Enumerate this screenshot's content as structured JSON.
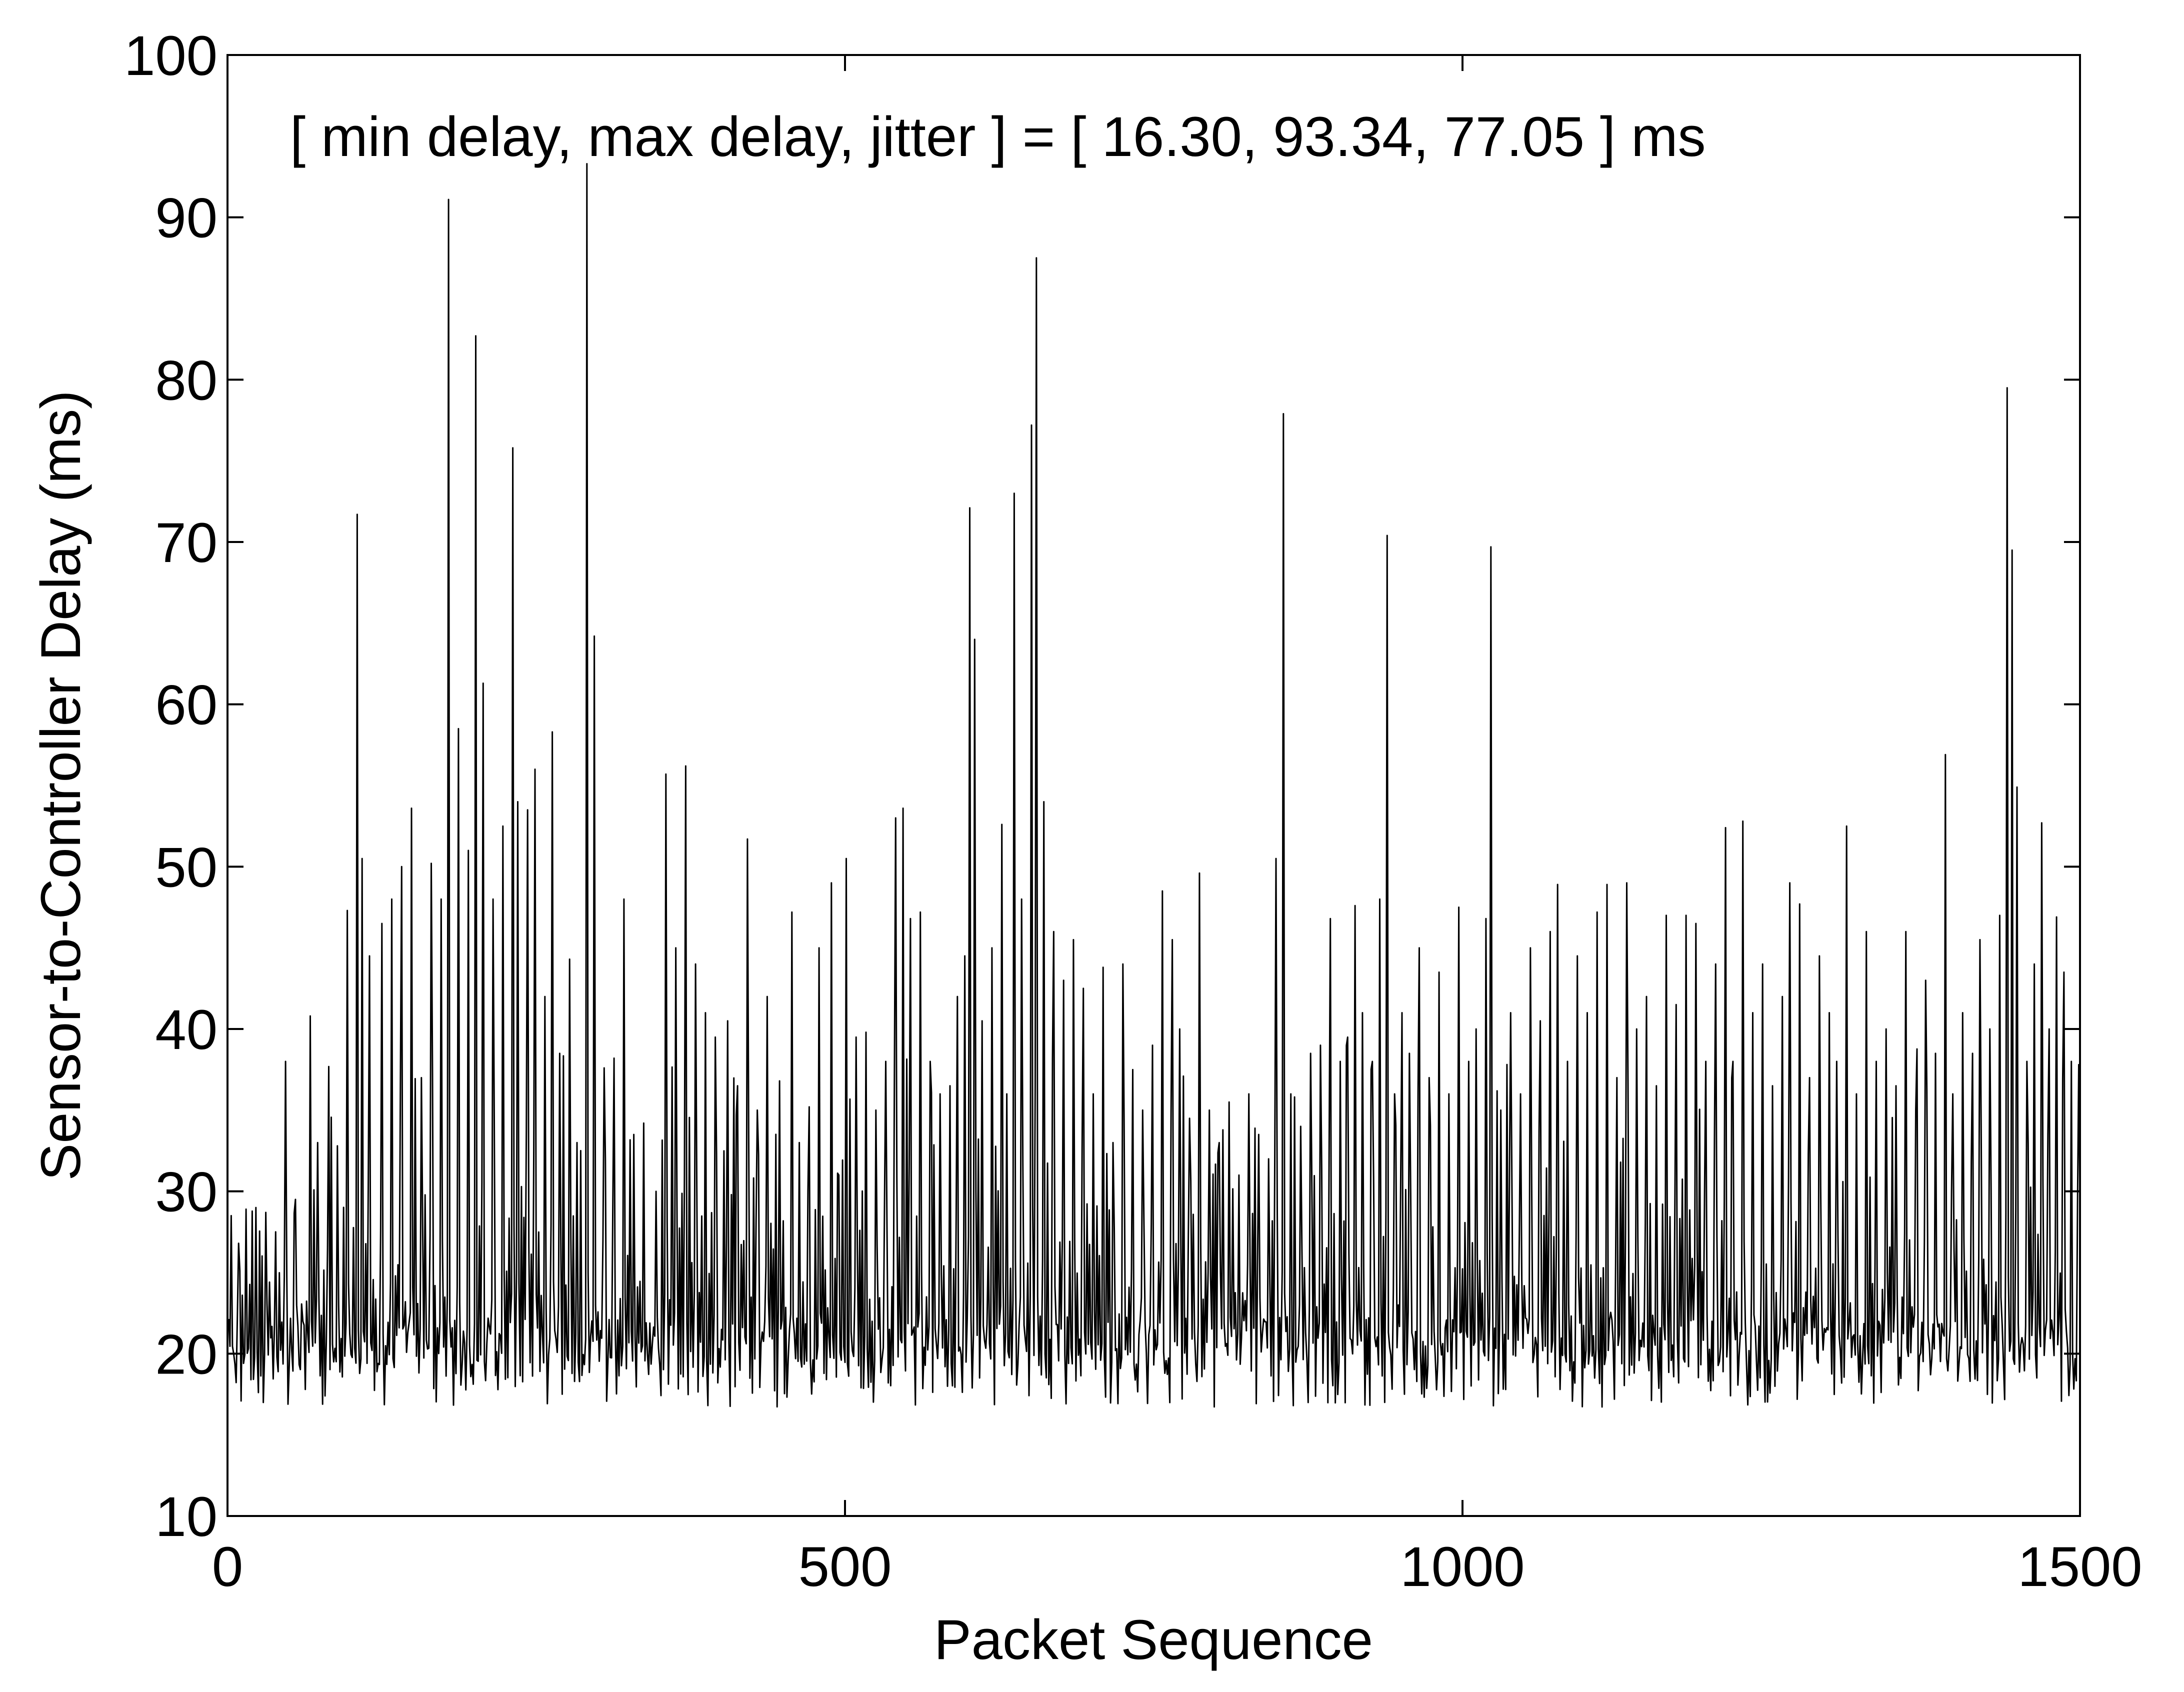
{
  "chart_data": {
    "type": "line",
    "title": "",
    "xlabel": "Packet Sequence",
    "ylabel": "Sensor-to-Controller Delay (ms)",
    "xlim": [
      0,
      1500
    ],
    "ylim": [
      10,
      100
    ],
    "xticks": [
      0,
      500,
      1000,
      1500
    ],
    "xtick_labels": [
      "0",
      "500",
      "1000",
      "1500"
    ],
    "yticks": [
      10,
      20,
      30,
      40,
      50,
      60,
      70,
      80,
      90,
      100
    ],
    "ytick_labels": [
      "10",
      "20",
      "30",
      "40",
      "50",
      "60",
      "70",
      "80",
      "90",
      "100"
    ],
    "grid": false,
    "legend": "none",
    "annotation": "[ min delay, max delay, jitter ] = [ 16.30, 93.34, 77.05 ] ms",
    "line_color": "#000000",
    "series": [
      {
        "count": 1500,
        "baseline_min": 16.3,
        "peaks": [
          [
            2,
            28.5
          ],
          [
            8,
            26.8
          ],
          [
            14,
            28.9
          ],
          [
            22,
            29.0
          ],
          [
            30,
            28.7
          ],
          [
            38,
            27.5
          ],
          [
            46,
            38.0
          ],
          [
            54,
            29.5
          ],
          [
            60,
            22.0
          ],
          [
            66,
            40.8
          ],
          [
            72,
            33.0
          ],
          [
            80,
            26.5
          ],
          [
            88,
            32.8
          ],
          [
            96,
            47.3
          ],
          [
            104,
            71.7
          ],
          [
            108,
            50.5
          ],
          [
            114,
            44.5
          ],
          [
            124,
            46.5
          ],
          [
            132,
            48.0
          ],
          [
            140,
            50.0
          ],
          [
            148,
            53.6
          ],
          [
            156,
            37.0
          ],
          [
            164,
            50.2
          ],
          [
            172,
            48.0
          ],
          [
            178,
            91.1
          ],
          [
            186,
            58.5
          ],
          [
            194,
            51.0
          ],
          [
            200,
            82.7
          ],
          [
            206,
            61.3
          ],
          [
            214,
            48.0
          ],
          [
            222,
            52.5
          ],
          [
            230,
            75.8
          ],
          [
            234,
            54.0
          ],
          [
            242,
            53.5
          ],
          [
            248,
            56.0
          ],
          [
            256,
            42.0
          ],
          [
            262,
            58.3
          ],
          [
            268,
            38.5
          ],
          [
            276,
            44.3
          ],
          [
            282,
            33.0
          ],
          [
            290,
            93.3
          ],
          [
            296,
            64.2
          ],
          [
            304,
            37.6
          ],
          [
            312,
            38.2
          ],
          [
            320,
            48.0
          ],
          [
            328,
            33.5
          ],
          [
            336,
            34.2
          ],
          [
            346,
            30.0
          ],
          [
            354,
            55.7
          ],
          [
            362,
            45.0
          ],
          [
            370,
            56.2
          ],
          [
            378,
            44.0
          ],
          [
            386,
            41.0
          ],
          [
            394,
            39.5
          ],
          [
            404,
            40.5
          ],
          [
            412,
            36.5
          ],
          [
            420,
            51.7
          ],
          [
            428,
            35.0
          ],
          [
            436,
            42.0
          ],
          [
            446,
            36.8
          ],
          [
            456,
            47.2
          ],
          [
            462,
            33.0
          ],
          [
            470,
            35.2
          ],
          [
            478,
            45.0
          ],
          [
            488,
            49.0
          ],
          [
            494,
            31.0
          ],
          [
            500,
            50.5
          ],
          [
            508,
            39.5
          ],
          [
            516,
            39.8
          ],
          [
            524,
            35.0
          ],
          [
            532,
            38.0
          ],
          [
            540,
            53.0
          ],
          [
            546,
            53.6
          ],
          [
            552,
            46.8
          ],
          [
            560,
            47.2
          ],
          [
            568,
            38.0
          ],
          [
            576,
            36.0
          ],
          [
            584,
            36.5
          ],
          [
            590,
            42.0
          ],
          [
            596,
            44.5
          ],
          [
            600,
            72.1
          ],
          [
            604,
            64.0
          ],
          [
            610,
            40.5
          ],
          [
            618,
            45.0
          ],
          [
            626,
            52.6
          ],
          [
            630,
            36.0
          ],
          [
            636,
            73.0
          ],
          [
            642,
            48.0
          ],
          [
            650,
            77.2
          ],
          [
            654,
            87.5
          ],
          [
            660,
            54.0
          ],
          [
            668,
            46.0
          ],
          [
            676,
            43.0
          ],
          [
            684,
            45.5
          ],
          [
            692,
            42.5
          ],
          [
            700,
            36.0
          ],
          [
            708,
            43.8
          ],
          [
            716,
            33.0
          ],
          [
            724,
            44.0
          ],
          [
            732,
            37.5
          ],
          [
            740,
            35.0
          ],
          [
            748,
            39.0
          ],
          [
            756,
            48.5
          ],
          [
            764,
            45.5
          ],
          [
            770,
            40.0
          ],
          [
            778,
            34.5
          ],
          [
            786,
            49.6
          ],
          [
            794,
            35.0
          ],
          [
            802,
            33.0
          ],
          [
            810,
            35.5
          ],
          [
            818,
            31.0
          ],
          [
            826,
            36.0
          ],
          [
            834,
            33.5
          ],
          [
            842,
            32.0
          ],
          [
            848,
            50.5
          ],
          [
            854,
            77.9
          ],
          [
            860,
            36.0
          ],
          [
            868,
            34.0
          ],
          [
            876,
            38.5
          ],
          [
            884,
            39.0
          ],
          [
            892,
            46.8
          ],
          [
            900,
            38.0
          ],
          [
            906,
            39.5
          ],
          [
            912,
            47.6
          ],
          [
            918,
            41.0
          ],
          [
            926,
            38.0
          ],
          [
            932,
            48.0
          ],
          [
            938,
            70.4
          ],
          [
            944,
            36.0
          ],
          [
            950,
            41.0
          ],
          [
            956,
            38.5
          ],
          [
            964,
            45.0
          ],
          [
            972,
            37.0
          ],
          [
            980,
            43.5
          ],
          [
            988,
            36.0
          ],
          [
            996,
            47.5
          ],
          [
            1004,
            38.0
          ],
          [
            1010,
            40.0
          ],
          [
            1018,
            46.8
          ],
          [
            1022,
            69.7
          ],
          [
            1030,
            35.0
          ],
          [
            1038,
            41.0
          ],
          [
            1046,
            36.0
          ],
          [
            1054,
            45.0
          ],
          [
            1062,
            40.5
          ],
          [
            1070,
            46.0
          ],
          [
            1076,
            48.9
          ],
          [
            1084,
            38.0
          ],
          [
            1092,
            44.5
          ],
          [
            1100,
            41.0
          ],
          [
            1108,
            47.2
          ],
          [
            1116,
            48.9
          ],
          [
            1124,
            37.0
          ],
          [
            1132,
            49.0
          ],
          [
            1140,
            40.0
          ],
          [
            1148,
            42.0
          ],
          [
            1156,
            36.5
          ],
          [
            1164,
            47.0
          ],
          [
            1172,
            41.5
          ],
          [
            1180,
            47.0
          ],
          [
            1188,
            46.5
          ],
          [
            1196,
            38.0
          ],
          [
            1204,
            44.0
          ],
          [
            1212,
            52.4
          ],
          [
            1218,
            38.0
          ],
          [
            1226,
            52.8
          ],
          [
            1234,
            41.0
          ],
          [
            1242,
            44.0
          ],
          [
            1250,
            36.5
          ],
          [
            1258,
            42.0
          ],
          [
            1264,
            49.0
          ],
          [
            1272,
            47.7
          ],
          [
            1280,
            37.0
          ],
          [
            1288,
            44.5
          ],
          [
            1296,
            41.0
          ],
          [
            1302,
            38.0
          ],
          [
            1310,
            52.5
          ],
          [
            1318,
            36.0
          ],
          [
            1326,
            46.0
          ],
          [
            1334,
            38.0
          ],
          [
            1342,
            40.0
          ],
          [
            1350,
            36.5
          ],
          [
            1358,
            46.0
          ],
          [
            1366,
            35.0
          ],
          [
            1374,
            43.0
          ],
          [
            1382,
            38.5
          ],
          [
            1390,
            56.9
          ],
          [
            1396,
            36.0
          ],
          [
            1404,
            41.0
          ],
          [
            1412,
            38.5
          ],
          [
            1418,
            45.5
          ],
          [
            1426,
            40.0
          ],
          [
            1434,
            47.0
          ],
          [
            1440,
            79.5
          ],
          [
            1444,
            69.5
          ],
          [
            1448,
            54.9
          ],
          [
            1456,
            38.0
          ],
          [
            1462,
            44.0
          ],
          [
            1468,
            52.7
          ],
          [
            1474,
            40.0
          ],
          [
            1480,
            46.9
          ],
          [
            1486,
            43.5
          ],
          [
            1492,
            38.0
          ],
          [
            1498,
            37.8
          ]
        ]
      }
    ]
  }
}
